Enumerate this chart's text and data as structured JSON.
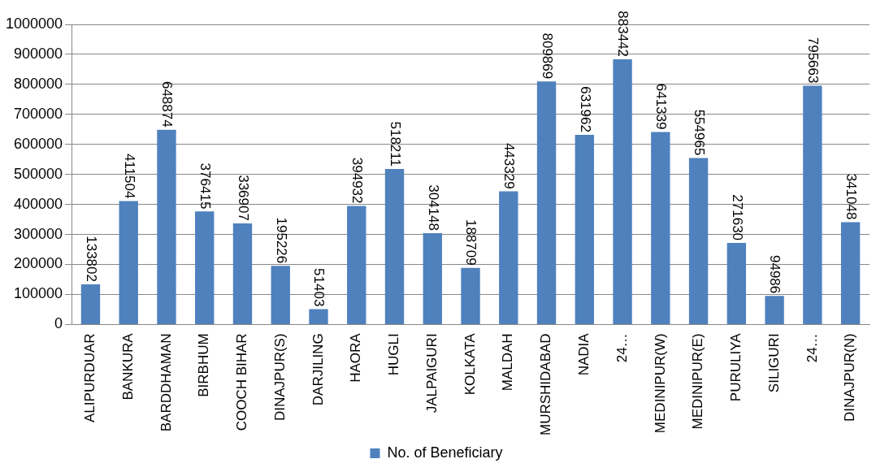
{
  "chart_data": {
    "type": "bar",
    "categories": [
      "ALIPURDUAR",
      "BANKURA",
      "BARDDHAMAN",
      "BIRBHUM",
      "COOCH BIHAR",
      "DINAJPUR(S)",
      "DARJILING",
      "HAORA",
      "HUGLI",
      "JALPAIGURI",
      "KOLKATA",
      "MALDAH",
      "MURSHIDABAD",
      "NADIA",
      "24…",
      "MEDINIPUR(W)",
      "MEDINIPUR(E)",
      "PURULIYA",
      "SILIGURI",
      "24…",
      "DINAJPUR(N)"
    ],
    "series": [
      {
        "name": "No. of Beneficiary",
        "color": "#4f81bd",
        "values": [
          133802,
          411504,
          648874,
          376415,
          336907,
          195226,
          51403,
          394932,
          518211,
          304148,
          188709,
          443329,
          809869,
          631962,
          883442,
          641339,
          554965,
          271630,
          94986,
          795663,
          341048
        ]
      }
    ],
    "ylim": [
      0,
      1000000
    ],
    "yticks": [
      0,
      100000,
      200000,
      300000,
      400000,
      500000,
      600000,
      700000,
      800000,
      900000,
      1000000
    ],
    "grid": "y",
    "legend": "bottom",
    "data_labels": true
  }
}
